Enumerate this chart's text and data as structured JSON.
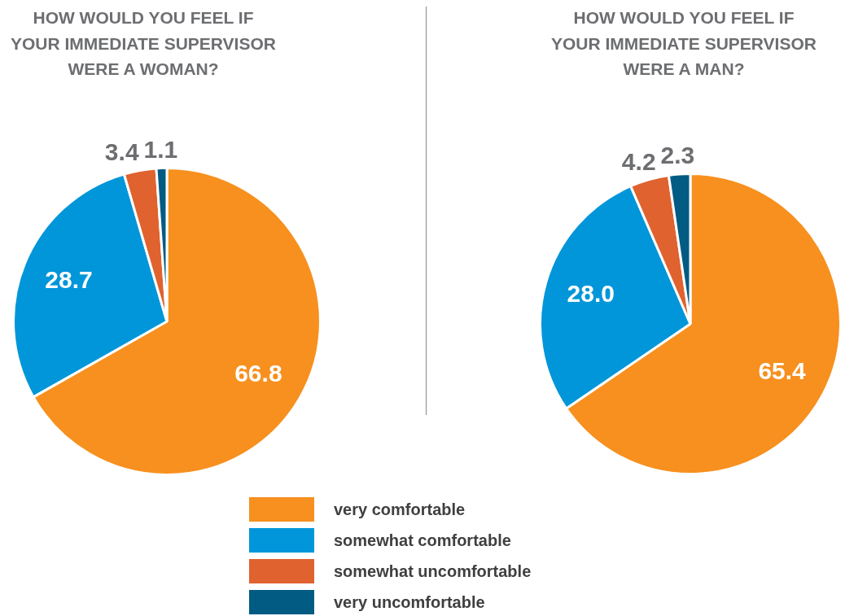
{
  "chart_data": {
    "type": "pie",
    "categories": [
      "very comfortable",
      "somewhat comfortable",
      "somewhat uncomfortable",
      "very uncomfortable"
    ],
    "colors": [
      "#f7901e",
      "#0096d9",
      "#e0622f",
      "#025b83"
    ],
    "legend": "bottom",
    "series": [
      {
        "name": "HOW WOULD YOU FEEL IF YOUR IMMEDIATE SUPERVISOR WERE A WOMAN?",
        "values": [
          66.8,
          28.7,
          3.4,
          1.1
        ],
        "value_labels": [
          "66.8",
          "28.7",
          "3.4",
          "1.1"
        ]
      },
      {
        "name": "HOW WOULD YOU FEEL IF YOUR IMMEDIATE SUPERVISOR WERE A MAN?",
        "values": [
          65.4,
          28.0,
          4.2,
          2.3
        ],
        "value_labels": [
          "65.4",
          "28.0",
          "4.2",
          "2.3"
        ]
      }
    ]
  }
}
